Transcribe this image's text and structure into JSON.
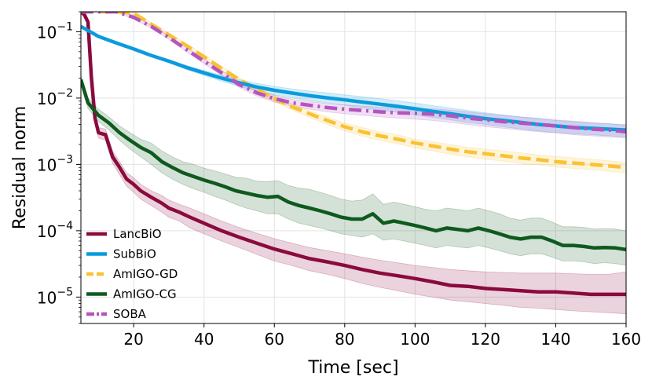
{
  "chart_data": {
    "type": "line",
    "xlabel": "Time [sec]",
    "ylabel": "Residual norm",
    "xlim": [
      5,
      160
    ],
    "ylim": [
      4e-06,
      0.2
    ],
    "yscale": "log",
    "grid": true,
    "legend_position": "lower-left",
    "x_ticks": [
      {
        "value": 20,
        "label": "20"
      },
      {
        "value": 40,
        "label": "40"
      },
      {
        "value": 60,
        "label": "60"
      },
      {
        "value": 80,
        "label": "80"
      },
      {
        "value": 100,
        "label": "100"
      },
      {
        "value": 120,
        "label": "120"
      },
      {
        "value": 140,
        "label": "140"
      },
      {
        "value": 160,
        "label": "160"
      }
    ],
    "y_ticks": [
      {
        "value": 0.1,
        "base": "10",
        "exp": "−1"
      },
      {
        "value": 0.01,
        "base": "10",
        "exp": "−2"
      },
      {
        "value": 0.001,
        "base": "10",
        "exp": "−3"
      },
      {
        "value": 0.0001,
        "base": "10",
        "exp": "−4"
      },
      {
        "value": 1e-05,
        "base": "10",
        "exp": "−5"
      }
    ],
    "series": [
      {
        "name": "LancBiO",
        "color": "#8b0a3e",
        "dash": "solid",
        "x": [
          5,
          6,
          7,
          8,
          9,
          10,
          12,
          14,
          16,
          18,
          20,
          22,
          25,
          28,
          30,
          33,
          36,
          40,
          45,
          50,
          55,
          60,
          65,
          70,
          75,
          80,
          85,
          90,
          95,
          100,
          105,
          110,
          115,
          120,
          125,
          130,
          135,
          140,
          145,
          150,
          155,
          160
        ],
        "y": [
          0.2,
          0.18,
          0.14,
          0.02,
          0.005,
          0.003,
          0.0028,
          0.0013,
          0.0009,
          0.0006,
          0.0005,
          0.0004,
          0.00032,
          0.00026,
          0.00022,
          0.00019,
          0.00016,
          0.00013,
          0.0001,
          8e-05,
          6.5e-05,
          5.3e-05,
          4.5e-05,
          3.8e-05,
          3.4e-05,
          3e-05,
          2.6e-05,
          2.3e-05,
          2.1e-05,
          1.9e-05,
          1.7e-05,
          1.5e-05,
          1.45e-05,
          1.35e-05,
          1.3e-05,
          1.25e-05,
          1.2e-05,
          1.2e-05,
          1.15e-05,
          1.1e-05,
          1.1e-05,
          1.1e-05
        ],
        "band_lower": [
          0.2,
          0.18,
          0.14,
          0.017,
          0.0042,
          0.0025,
          0.0023,
          0.00105,
          0.0007,
          0.00047,
          0.00038,
          0.0003,
          0.00024,
          0.00019,
          0.00016,
          0.00014,
          0.00011,
          9e-05,
          7e-05,
          5.6e-05,
          4.4e-05,
          3.5e-05,
          3e-05,
          2.5e-05,
          2.2e-05,
          1.9e-05,
          1.6e-05,
          1.4e-05,
          1.25e-05,
          1.1e-05,
          1e-05,
          9e-06,
          8.5e-06,
          8e-06,
          7.5e-06,
          7e-06,
          6.8e-06,
          6.5e-06,
          6.2e-06,
          6e-06,
          5.8e-06,
          5.6e-06
        ],
        "band_upper": [
          0.2,
          0.18,
          0.14,
          0.024,
          0.006,
          0.0036,
          0.0034,
          0.0016,
          0.0011,
          0.00075,
          0.00063,
          0.0005,
          0.0004,
          0.00034,
          0.00029,
          0.00025,
          0.00022,
          0.00018,
          0.00014,
          0.000112,
          9.2e-05,
          7.6e-05,
          6.5e-05,
          5.6e-05,
          5e-05,
          4.5e-05,
          4e-05,
          3.6e-05,
          3.3e-05,
          3e-05,
          2.8e-05,
          2.6e-05,
          2.5e-05,
          2.4e-05,
          2.35e-05,
          2.3e-05,
          2.3e-05,
          2.3e-05,
          2.25e-05,
          2.2e-05,
          2.2e-05,
          2.4e-05
        ]
      },
      {
        "name": "SubBiO",
        "color": "#0a9bdc",
        "dash": "solid",
        "x": [
          5,
          10,
          15,
          20,
          25,
          30,
          35,
          40,
          45,
          50,
          55,
          60,
          65,
          70,
          75,
          80,
          85,
          90,
          95,
          100,
          105,
          110,
          115,
          120,
          125,
          130,
          135,
          140,
          145,
          150,
          155,
          160
        ],
        "y": [
          0.12,
          0.085,
          0.068,
          0.055,
          0.044,
          0.036,
          0.029,
          0.024,
          0.02,
          0.017,
          0.0147,
          0.0131,
          0.0119,
          0.0109,
          0.0101,
          0.0094,
          0.0087,
          0.0081,
          0.0075,
          0.0069,
          0.0063,
          0.0058,
          0.0053,
          0.0049,
          0.0046,
          0.0043,
          0.004,
          0.0038,
          0.0036,
          0.0035,
          0.0034,
          0.0033
        ],
        "band_lower": [
          0.115,
          0.082,
          0.066,
          0.053,
          0.042,
          0.034,
          0.027,
          0.022,
          0.018,
          0.015,
          0.0128,
          0.0112,
          0.0101,
          0.0092,
          0.0085,
          0.0078,
          0.0071,
          0.0066,
          0.0061,
          0.0056,
          0.0051,
          0.0047,
          0.0043,
          0.004,
          0.0037,
          0.0034,
          0.0032,
          0.003,
          0.0029,
          0.0028,
          0.0027,
          0.0026
        ],
        "band_upper": [
          0.125,
          0.088,
          0.07,
          0.057,
          0.046,
          0.038,
          0.031,
          0.026,
          0.022,
          0.019,
          0.0167,
          0.015,
          0.0138,
          0.0128,
          0.012,
          0.0112,
          0.0105,
          0.0098,
          0.0091,
          0.0084,
          0.0077,
          0.0071,
          0.0065,
          0.006,
          0.0056,
          0.0052,
          0.0049,
          0.0046,
          0.0044,
          0.0042,
          0.0041,
          0.004
        ]
      },
      {
        "name": "AmIGO-GD",
        "color": "#f9c232",
        "dash": "dashed",
        "x": [
          5,
          15,
          20,
          25,
          30,
          35,
          40,
          45,
          50,
          55,
          60,
          65,
          70,
          75,
          80,
          85,
          90,
          95,
          100,
          105,
          110,
          115,
          120,
          125,
          130,
          135,
          140,
          145,
          150,
          155,
          160
        ],
        "y": [
          0.2,
          0.2,
          0.19,
          0.13,
          0.09,
          0.062,
          0.042,
          0.028,
          0.019,
          0.0135,
          0.0098,
          0.0074,
          0.0058,
          0.0046,
          0.0037,
          0.0031,
          0.0027,
          0.0024,
          0.0021,
          0.0019,
          0.0017,
          0.00155,
          0.00145,
          0.00135,
          0.00125,
          0.00118,
          0.0011,
          0.00105,
          0.001,
          0.00095,
          0.0009
        ],
        "band_lower": [
          0.2,
          0.2,
          0.18,
          0.123,
          0.085,
          0.058,
          0.039,
          0.026,
          0.0175,
          0.0123,
          0.0088,
          0.0066,
          0.0051,
          0.004,
          0.0032,
          0.00265,
          0.0023,
          0.00204,
          0.00178,
          0.0016,
          0.00143,
          0.0013,
          0.0012,
          0.00112,
          0.00104,
          0.00098,
          0.00091,
          0.00087,
          0.00083,
          0.00079,
          0.00075
        ],
        "band_upper": [
          0.2,
          0.2,
          0.2,
          0.137,
          0.095,
          0.066,
          0.045,
          0.03,
          0.0205,
          0.0147,
          0.0108,
          0.0082,
          0.0065,
          0.0052,
          0.0042,
          0.0036,
          0.0031,
          0.0028,
          0.0024,
          0.0022,
          0.002,
          0.0018,
          0.0017,
          0.0016,
          0.0015,
          0.0014,
          0.00132,
          0.00126,
          0.0012,
          0.00114,
          0.00108
        ]
      },
      {
        "name": "AmIGO-CG",
        "color": "#0e5a1e",
        "dash": "solid",
        "x": [
          5,
          7,
          10,
          13,
          16,
          19,
          22,
          25,
          28,
          31,
          34,
          37,
          40,
          43,
          46,
          49,
          52,
          55,
          58,
          61,
          64,
          67,
          70,
          73,
          76,
          79,
          82,
          85,
          88,
          91,
          94,
          97,
          100,
          103,
          106,
          109,
          112,
          115,
          118,
          121,
          124,
          127,
          130,
          133,
          136,
          139,
          142,
          145,
          148,
          151,
          154,
          157,
          160
        ],
        "y": [
          0.019,
          0.0085,
          0.0055,
          0.0042,
          0.003,
          0.0023,
          0.0018,
          0.0015,
          0.0011,
          0.0009,
          0.00075,
          0.00066,
          0.00058,
          0.00052,
          0.00046,
          0.0004,
          0.00037,
          0.00034,
          0.00032,
          0.00033,
          0.00027,
          0.00024,
          0.00022,
          0.0002,
          0.00018,
          0.00016,
          0.00015,
          0.00015,
          0.00018,
          0.00013,
          0.00014,
          0.00013,
          0.00012,
          0.00011,
          0.0001,
          0.00011,
          0.000105,
          0.0001,
          0.00011,
          0.0001,
          9e-05,
          8e-05,
          7.5e-05,
          8e-05,
          8e-05,
          7e-05,
          6e-05,
          6e-05,
          5.8e-05,
          5.5e-05,
          5.6e-05,
          5.5e-05,
          5.2e-05
        ],
        "band_lower": [
          0.016,
          0.007,
          0.0044,
          0.0033,
          0.0023,
          0.0017,
          0.0013,
          0.001,
          0.00075,
          0.0006,
          0.0005,
          0.00043,
          0.00038,
          0.00033,
          0.00029,
          0.00025,
          0.00022,
          0.0002,
          0.00018,
          0.00018,
          0.00015,
          0.00013,
          0.00012,
          0.00011,
          0.0001,
          9e-05,
          8.5e-05,
          8e-05,
          9e-05,
          7.2e-05,
          7.5e-05,
          7e-05,
          6.5e-05,
          6e-05,
          5.5e-05,
          6e-05,
          5.7e-05,
          5.5e-05,
          6e-05,
          5.5e-05,
          5e-05,
          4.5e-05,
          4.2e-05,
          4.5e-05,
          4.5e-05,
          4e-05,
          3.5e-05,
          3.5e-05,
          3.4e-05,
          3.2e-05,
          3.3e-05,
          3.2e-05,
          3e-05
        ],
        "band_upper": [
          0.022,
          0.01,
          0.0068,
          0.0052,
          0.0038,
          0.003,
          0.0024,
          0.0021,
          0.0016,
          0.0013,
          0.0011,
          0.001,
          0.00088,
          0.0008,
          0.00072,
          0.00064,
          0.00062,
          0.00056,
          0.00055,
          0.00057,
          0.00048,
          0.00044,
          0.00042,
          0.00038,
          0.00034,
          0.0003,
          0.00028,
          0.00029,
          0.00036,
          0.00025,
          0.00027,
          0.00025,
          0.00023,
          0.00021,
          0.0002,
          0.00022,
          0.00021,
          0.0002,
          0.00022,
          0.0002,
          0.00018,
          0.000155,
          0.000145,
          0.000155,
          0.000155,
          0.000135,
          0.000115,
          0.000115,
          0.000112,
          0.000106,
          0.000108,
          0.000106,
          0.0001
        ]
      },
      {
        "name": "SOBA",
        "color": "#b455be",
        "dash": "dashdot",
        "x": [
          5,
          15,
          20,
          25,
          30,
          35,
          40,
          45,
          50,
          55,
          60,
          65,
          70,
          75,
          80,
          85,
          90,
          95,
          100,
          105,
          110,
          115,
          120,
          125,
          130,
          135,
          140,
          145,
          150,
          155,
          160
        ],
        "y": [
          0.2,
          0.2,
          0.165,
          0.12,
          0.082,
          0.054,
          0.036,
          0.024,
          0.016,
          0.012,
          0.0098,
          0.0085,
          0.0078,
          0.0072,
          0.0068,
          0.0065,
          0.0062,
          0.006,
          0.0059,
          0.0057,
          0.0054,
          0.005,
          0.0047,
          0.0044,
          0.0042,
          0.004,
          0.0038,
          0.0036,
          0.0034,
          0.0033,
          0.0031
        ],
        "band_lower": [
          0.2,
          0.2,
          0.155,
          0.113,
          0.077,
          0.05,
          0.033,
          0.022,
          0.0145,
          0.0108,
          0.0087,
          0.0075,
          0.0068,
          0.0062,
          0.0058,
          0.0055,
          0.0052,
          0.005,
          0.0048,
          0.0046,
          0.0043,
          0.004,
          0.0037,
          0.0035,
          0.0033,
          0.0031,
          0.003,
          0.0028,
          0.0027,
          0.0026,
          0.0025
        ],
        "band_upper": [
          0.2,
          0.2,
          0.175,
          0.127,
          0.087,
          0.058,
          0.039,
          0.026,
          0.0175,
          0.0132,
          0.011,
          0.0096,
          0.0089,
          0.0083,
          0.0079,
          0.0076,
          0.0073,
          0.0071,
          0.007,
          0.0069,
          0.0066,
          0.0062,
          0.0058,
          0.0055,
          0.0052,
          0.005,
          0.0047,
          0.0045,
          0.0043,
          0.0041,
          0.0039
        ]
      }
    ]
  }
}
